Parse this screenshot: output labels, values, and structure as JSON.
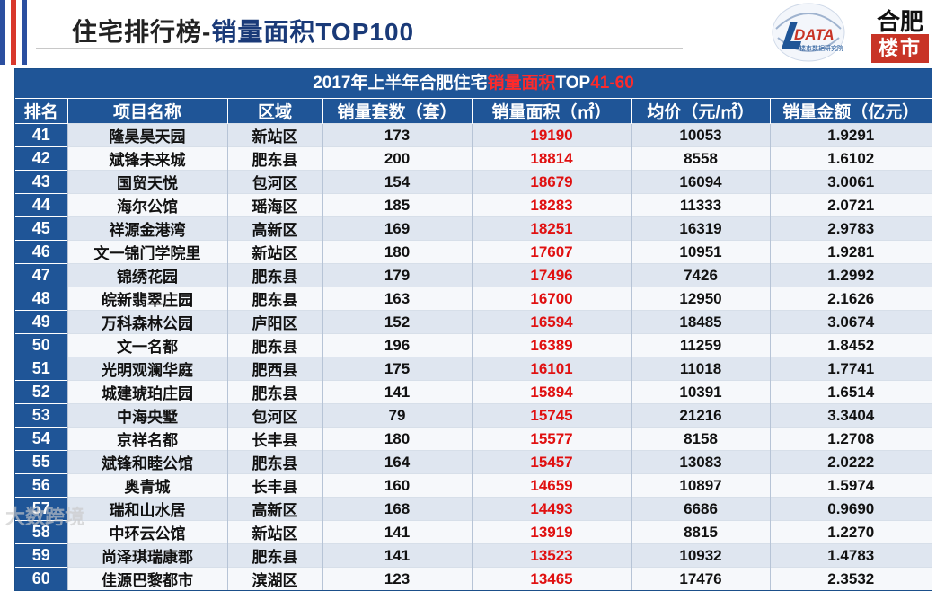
{
  "header": {
    "title_main": "住宅排行榜-",
    "title_accent": "销量面积TOP100",
    "logo_data_text": "DATA",
    "logo_data_sub": "楼市数据研究院",
    "logo_hf_top": "合肥",
    "logo_hf_bottom": "楼市"
  },
  "table": {
    "caption_pre": "2017年上半年合肥住宅",
    "caption_red": "销量面积",
    "caption_top": "TOP",
    "caption_range": "41-60",
    "columns": [
      "排名",
      "项目名称",
      "区域",
      "销量套数（套）",
      "销量面积（㎡）",
      "均价（元/㎡）",
      "销量金额（亿元）"
    ],
    "rows": [
      {
        "rank": "41",
        "name": "隆昊昊天园",
        "district": "新站区",
        "units": "173",
        "area": "19190",
        "price": "10053",
        "amount": "1.9291"
      },
      {
        "rank": "42",
        "name": "斌锋未来城",
        "district": "肥东县",
        "units": "200",
        "area": "18814",
        "price": "8558",
        "amount": "1.6102"
      },
      {
        "rank": "43",
        "name": "国贸天悦",
        "district": "包河区",
        "units": "154",
        "area": "18679",
        "price": "16094",
        "amount": "3.0061"
      },
      {
        "rank": "44",
        "name": "海尔公馆",
        "district": "瑶海区",
        "units": "185",
        "area": "18283",
        "price": "11333",
        "amount": "2.0721"
      },
      {
        "rank": "45",
        "name": "祥源金港湾",
        "district": "高新区",
        "units": "169",
        "area": "18251",
        "price": "16319",
        "amount": "2.9783"
      },
      {
        "rank": "46",
        "name": "文一锦门学院里",
        "district": "新站区",
        "units": "180",
        "area": "17607",
        "price": "10951",
        "amount": "1.9281"
      },
      {
        "rank": "47",
        "name": "锦绣花园",
        "district": "肥东县",
        "units": "179",
        "area": "17496",
        "price": "7426",
        "amount": "1.2992"
      },
      {
        "rank": "48",
        "name": "皖新翡翠庄园",
        "district": "肥东县",
        "units": "163",
        "area": "16700",
        "price": "12950",
        "amount": "2.1626"
      },
      {
        "rank": "49",
        "name": "万科森林公园",
        "district": "庐阳区",
        "units": "152",
        "area": "16594",
        "price": "18485",
        "amount": "3.0674"
      },
      {
        "rank": "50",
        "name": "文一名都",
        "district": "肥东县",
        "units": "196",
        "area": "16389",
        "price": "11259",
        "amount": "1.8452"
      },
      {
        "rank": "51",
        "name": "光明观澜华庭",
        "district": "肥西县",
        "units": "175",
        "area": "16101",
        "price": "11018",
        "amount": "1.7741"
      },
      {
        "rank": "52",
        "name": "城建琥珀庄园",
        "district": "肥东县",
        "units": "141",
        "area": "15894",
        "price": "10391",
        "amount": "1.6514"
      },
      {
        "rank": "53",
        "name": "中海央墅",
        "district": "包河区",
        "units": "79",
        "area": "15745",
        "price": "21216",
        "amount": "3.3404"
      },
      {
        "rank": "54",
        "name": "京祥名都",
        "district": "长丰县",
        "units": "180",
        "area": "15577",
        "price": "8158",
        "amount": "1.2708"
      },
      {
        "rank": "55",
        "name": "斌锋和睦公馆",
        "district": "肥东县",
        "units": "164",
        "area": "15457",
        "price": "13083",
        "amount": "2.0222"
      },
      {
        "rank": "56",
        "name": "奥青城",
        "district": "长丰县",
        "units": "160",
        "area": "14659",
        "price": "10897",
        "amount": "1.5974"
      },
      {
        "rank": "57",
        "name": "瑞和山水居",
        "district": "高新区",
        "units": "168",
        "area": "14493",
        "price": "6686",
        "amount": "0.9690"
      },
      {
        "rank": "58",
        "name": "中环云公馆",
        "district": "新站区",
        "units": "141",
        "area": "13919",
        "price": "8815",
        "amount": "1.2270"
      },
      {
        "rank": "59",
        "name": "尚泽琪瑞康郡",
        "district": "肥东县",
        "units": "141",
        "area": "13523",
        "price": "10932",
        "amount": "1.4783"
      },
      {
        "rank": "60",
        "name": "佳源巴黎都市",
        "district": "滨湖区",
        "units": "123",
        "area": "13465",
        "price": "17476",
        "amount": "2.3532"
      }
    ]
  },
  "watermark": "大数跨境",
  "colors": {
    "header_blue": "#1f5597",
    "title_accent": "#1a3a78",
    "area_red": "#e01010",
    "flag_blue": "#2b4fa0",
    "flag_red": "#d8382c"
  }
}
